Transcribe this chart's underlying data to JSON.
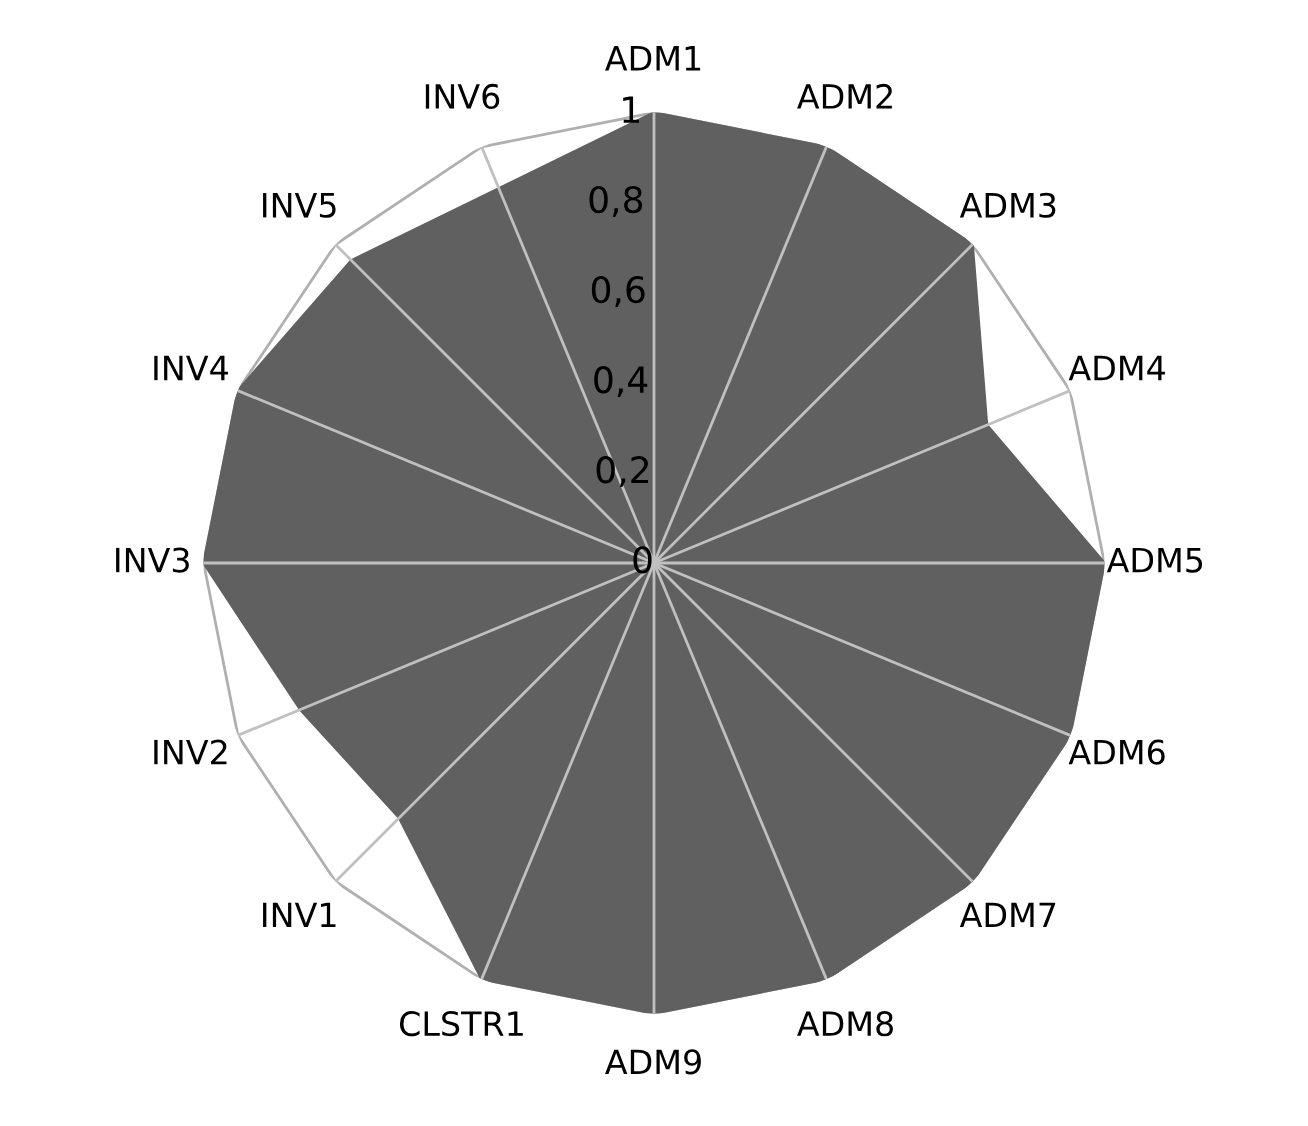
{
  "chart_data": {
    "type": "radar",
    "categories": [
      "ADM1",
      "ADM2",
      "ADM3",
      "ADM4",
      "ADM5",
      "ADM6",
      "ADM7",
      "ADM8",
      "ADM9",
      "CLSTR1",
      "INV1",
      "INV2",
      "INV3",
      "INV4",
      "INV5",
      "INV6"
    ],
    "series": [
      {
        "color": "#606060",
        "values": [
          1,
          1,
          1,
          0.8,
          1,
          1,
          1,
          1,
          1,
          1,
          0.8,
          0.85,
          1,
          1,
          0.95,
          0.9
        ]
      }
    ],
    "ylim": [
      0,
      1
    ],
    "yticks": [
      0,
      {
        "value": 0.2,
        "label": "0,2"
      },
      {
        "value": 0.4,
        "label": "0,4"
      },
      {
        "value": 0.6,
        "label": "0,6"
      },
      {
        "value": 0.8,
        "label": "0,8"
      },
      1
    ],
    "grid": true
  }
}
